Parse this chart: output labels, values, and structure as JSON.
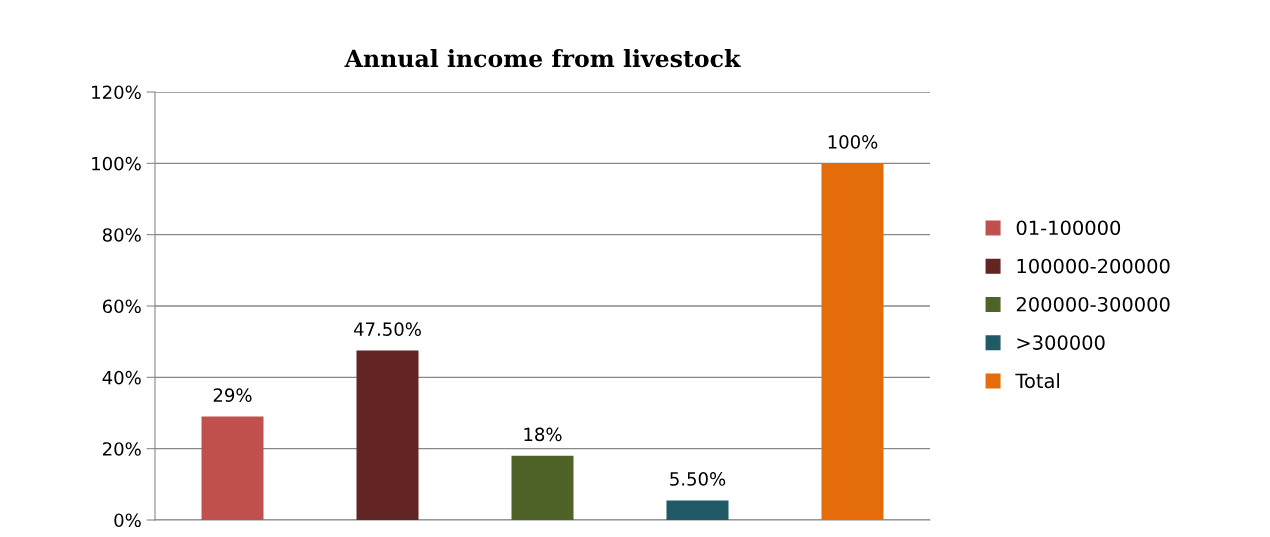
{
  "chart_data": {
    "type": "bar",
    "title": "Annual income from livestock",
    "categories": [
      null
    ],
    "series": [
      {
        "name": "01-100000",
        "color": "#c0504d",
        "values": [
          29
        ],
        "value_labels": [
          "29%"
        ]
      },
      {
        "name": "100000-200000",
        "color": "#632523",
        "values": [
          47.5
        ],
        "value_labels": [
          "47.50%"
        ]
      },
      {
        "name": "200000-300000",
        "color": "#4f6228",
        "values": [
          18
        ],
        "value_labels": [
          "18%"
        ]
      },
      {
        "name": ">300000",
        "color": "#215967",
        "values": [
          5.5
        ],
        "value_labels": [
          "5.50%"
        ]
      },
      {
        "name": "Total",
        "color": "#e46c0a",
        "values": [
          100
        ],
        "value_labels": [
          "100%"
        ]
      }
    ],
    "ylim": [
      0,
      120
    ],
    "yticks": [
      {
        "value": 0,
        "label": "0%"
      },
      {
        "value": 20,
        "label": "20%"
      },
      {
        "value": 40,
        "label": "40%"
      },
      {
        "value": 60,
        "label": "60%"
      },
      {
        "value": 80,
        "label": "80%"
      },
      {
        "value": 100,
        "label": "100%"
      },
      {
        "value": 120,
        "label": "120%"
      }
    ],
    "grid": "y",
    "legend": "right"
  }
}
